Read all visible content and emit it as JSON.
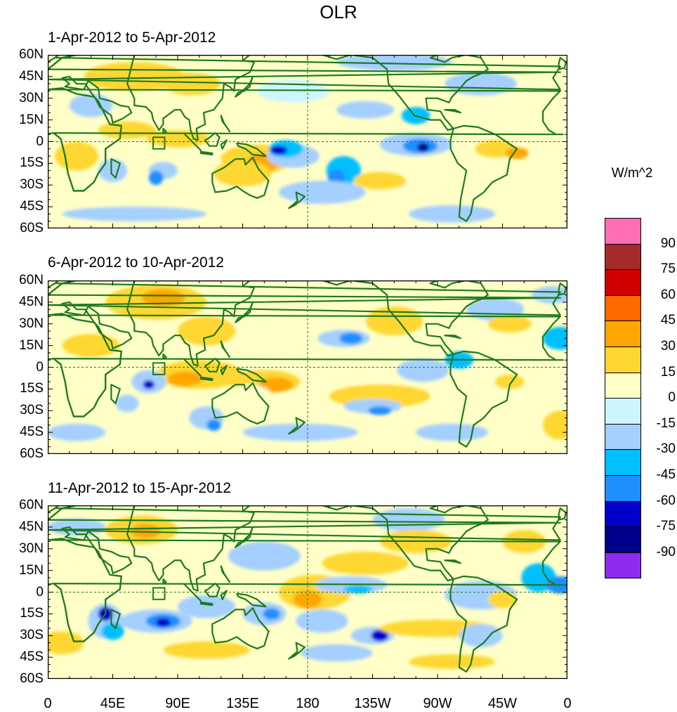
{
  "title": "OLR",
  "panels": [
    {
      "title": "1-Apr-2012 to 5-Apr-2012"
    },
    {
      "title": "6-Apr-2012 to 10-Apr-2012"
    },
    {
      "title": "11-Apr-2012 to 15-Apr-2012"
    }
  ],
  "lat_labels": [
    "60N",
    "45N",
    "30N",
    "15N",
    "0",
    "15S",
    "30S",
    "45S",
    "60S"
  ],
  "lon_labels": [
    "0",
    "45E",
    "90E",
    "135E",
    "180",
    "135W",
    "90W",
    "45W",
    "0"
  ],
  "colorbar": {
    "units": "W/m^2",
    "labels": [
      "90",
      "75",
      "60",
      "45",
      "30",
      "15",
      "0",
      "-15",
      "-30",
      "-45",
      "-60",
      "-75",
      "-90"
    ],
    "colors": [
      "#ff6eb4",
      "#a52a2a",
      "#d00000",
      "#ff6a00",
      "#ffa500",
      "#ffd733",
      "#ffffc8",
      "#cdf5ff",
      "#a4cfff",
      "#00bfff",
      "#1e8fff",
      "#0000cd",
      "#00008b",
      "#8f2bef"
    ]
  }
}
